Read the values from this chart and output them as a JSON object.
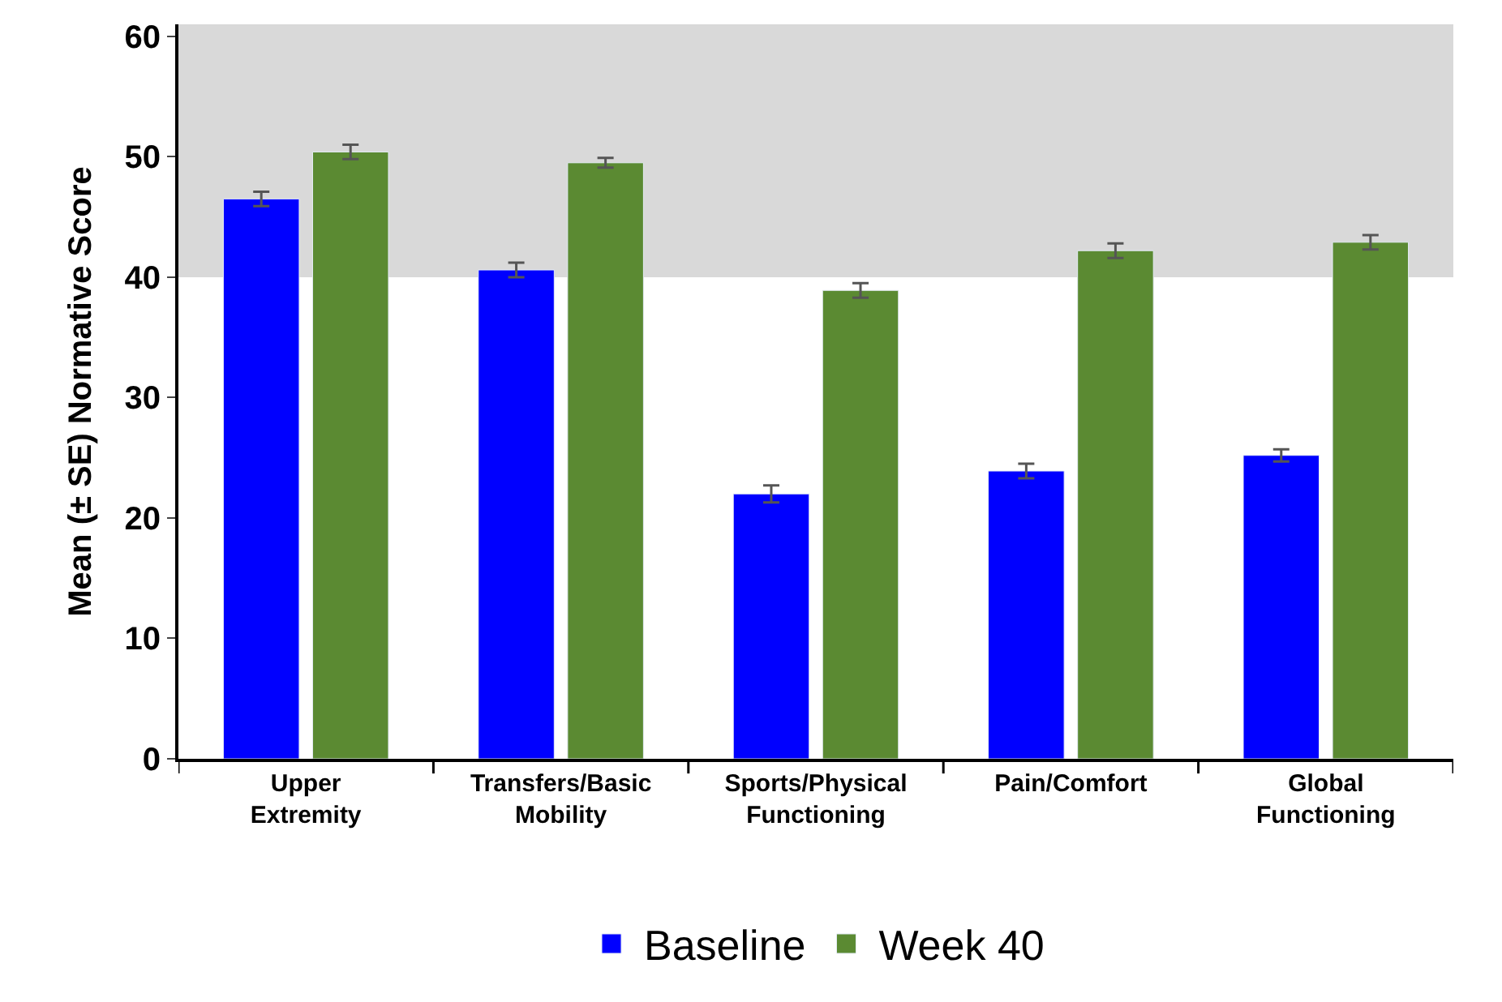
{
  "chart_data": {
    "type": "bar",
    "ylabel": "Mean (± SE) Normative Score",
    "categories": [
      "Upper Extremity",
      "Transfers/Basic Mobility",
      "Sports/Physical Functioning",
      "Pain/Comfort",
      "Global Functioning"
    ],
    "series": [
      {
        "name": "Baseline",
        "color": "#0000ff",
        "values": [
          46.5,
          40.6,
          22.0,
          23.9,
          25.2
        ],
        "errors": [
          0.6,
          0.6,
          0.7,
          0.6,
          0.5
        ]
      },
      {
        "name": "Week 40",
        "color": "#5b8a32",
        "values": [
          50.4,
          49.5,
          38.9,
          42.2,
          42.9
        ],
        "errors": [
          0.6,
          0.4,
          0.6,
          0.6,
          0.6
        ]
      }
    ],
    "ylim": [
      0,
      61
    ],
    "yticks": [
      0,
      10,
      20,
      30,
      40,
      50,
      60
    ],
    "bands": [
      {
        "axis": "y",
        "from": 40,
        "to": 61,
        "color": "#d9d9d9"
      }
    ],
    "grid": false,
    "legend": "bottom"
  }
}
